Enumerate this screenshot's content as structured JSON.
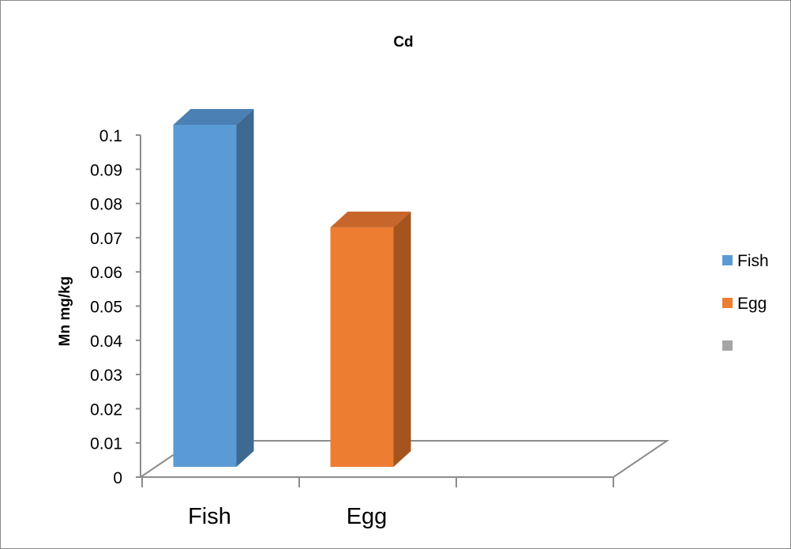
{
  "chart_data": {
    "type": "bar",
    "title": "Cd",
    "xlabel": "",
    "ylabel": "Mn mg/kg",
    "categories": [
      "Fish",
      "Egg",
      ""
    ],
    "series": [
      {
        "name": "Fish",
        "category": "Fish",
        "value": 0.1,
        "color": "#5b9bd5",
        "side_color": "#3e6990",
        "top_color": "#4a80b4"
      },
      {
        "name": "Egg",
        "category": "Egg",
        "value": 0.07,
        "color": "#ed7d31",
        "side_color": "#a5541e",
        "top_color": "#c8652a"
      },
      {
        "name": "",
        "category": "",
        "value": null,
        "color": "#a5a5a5"
      }
    ],
    "ylim": [
      0,
      0.1
    ],
    "yticks": [
      "0",
      "0.01",
      "0.02",
      "0.03",
      "0.04",
      "0.05",
      "0.06",
      "0.07",
      "0.08",
      "0.09",
      "0.1"
    ],
    "grid": false,
    "legend_position": "right",
    "style": "3d-column",
    "axis_color": "#8c8c8c"
  }
}
